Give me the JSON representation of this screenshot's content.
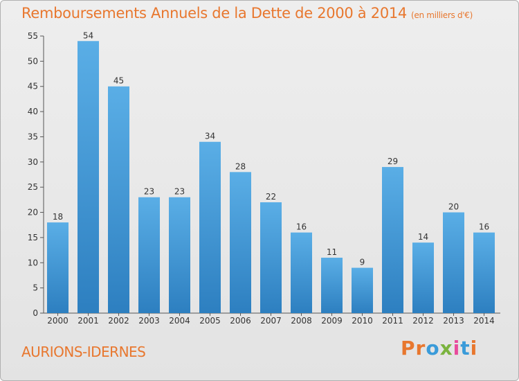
{
  "title": "Remboursements Annuels de la Dette de 2000 à 2014",
  "subtitle": "(en milliers d'€)",
  "place": "AURIONS-IDERNES",
  "logo": {
    "text": "Proxiti",
    "colors": [
      "#e8772e",
      "#e8772e",
      "#3a9bd9",
      "#7ab33e",
      "#e84b9c",
      "#3a9bd9",
      "#e8772e"
    ]
  },
  "colors": {
    "accent": "#e8772e",
    "bar_top": "#5aaee6",
    "bar_bottom": "#2d7fc0"
  },
  "chart_data": {
    "type": "bar",
    "categories": [
      "2000",
      "2001",
      "2002",
      "2003",
      "2004",
      "2005",
      "2006",
      "2007",
      "2008",
      "2009",
      "2010",
      "2011",
      "2012",
      "2013",
      "2014"
    ],
    "values": [
      18,
      54,
      45,
      23,
      23,
      34,
      28,
      22,
      16,
      11,
      9,
      29,
      14,
      20,
      16
    ],
    "ylim": [
      0,
      55
    ],
    "yticks": [
      0,
      5,
      10,
      15,
      20,
      25,
      30,
      35,
      40,
      45,
      50,
      55
    ],
    "xlabel": "",
    "ylabel": "",
    "grid": false
  }
}
